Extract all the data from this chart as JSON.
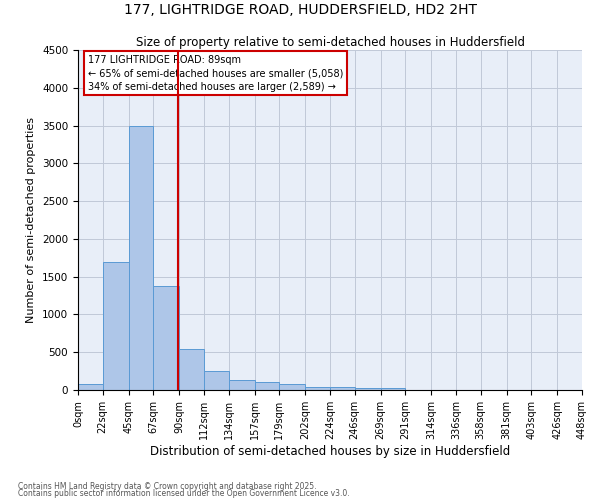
{
  "title": "177, LIGHTRIDGE ROAD, HUDDERSFIELD, HD2 2HT",
  "subtitle": "Size of property relative to semi-detached houses in Huddersfield",
  "xlabel": "Distribution of semi-detached houses by size in Huddersfield",
  "ylabel": "Number of semi-detached properties",
  "bin_edges": [
    0,
    22,
    45,
    67,
    90,
    112,
    134,
    157,
    179,
    202,
    224,
    246,
    269,
    291,
    314,
    336,
    358,
    381,
    403,
    426,
    448
  ],
  "bar_heights": [
    75,
    1700,
    3500,
    1380,
    540,
    255,
    130,
    105,
    75,
    45,
    40,
    30,
    20,
    0,
    0,
    0,
    0,
    0,
    0,
    0
  ],
  "tick_labels": [
    "0sqm",
    "22sqm",
    "45sqm",
    "67sqm",
    "90sqm",
    "112sqm",
    "134sqm",
    "157sqm",
    "179sqm",
    "202sqm",
    "224sqm",
    "246sqm",
    "269sqm",
    "291sqm",
    "314sqm",
    "336sqm",
    "358sqm",
    "381sqm",
    "403sqm",
    "426sqm",
    "448sqm"
  ],
  "bar_color": "#aec6e8",
  "bar_edge_color": "#5a9ad4",
  "property_size": 89,
  "property_line_color": "#cc0000",
  "annotation_title": "177 LIGHTRIDGE ROAD: 89sqm",
  "annotation_line1": "← 65% of semi-detached houses are smaller (5,058)",
  "annotation_line2": "34% of semi-detached houses are larger (2,589) →",
  "ylim": [
    0,
    4500
  ],
  "yticks": [
    0,
    500,
    1000,
    1500,
    2000,
    2500,
    3000,
    3500,
    4000,
    4500
  ],
  "grid_color": "#c0c8d8",
  "bg_color": "#e8eef8",
  "footnote1": "Contains HM Land Registry data © Crown copyright and database right 2025.",
  "footnote2": "Contains public sector information licensed under the Open Government Licence v3.0."
}
